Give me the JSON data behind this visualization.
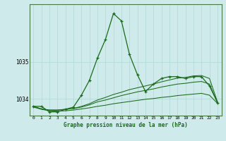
{
  "title": "Graphe pression niveau de la mer (hPa)",
  "background_color": "#ceeaea",
  "line_color_main": "#1a6b1a",
  "grid_color": "#b0d8d8",
  "xlim": [
    -0.5,
    23.5
  ],
  "ylim": [
    1033.55,
    1036.55
  ],
  "yticks": [
    1034,
    1035
  ],
  "xticks": [
    0,
    1,
    2,
    3,
    4,
    5,
    6,
    7,
    8,
    9,
    10,
    11,
    12,
    13,
    14,
    15,
    16,
    17,
    18,
    19,
    20,
    21,
    22,
    23
  ],
  "series_main": [
    1033.8,
    1033.8,
    1033.65,
    1033.65,
    1033.72,
    1033.78,
    1034.1,
    1034.5,
    1035.1,
    1035.6,
    1036.3,
    1036.1,
    1035.2,
    1034.65,
    1034.2,
    1034.4,
    1034.55,
    1034.6,
    1034.6,
    1034.55,
    1034.6,
    1034.6,
    1034.35,
    1033.9
  ],
  "series_smooth1": [
    1033.78,
    1033.72,
    1033.68,
    1033.67,
    1033.68,
    1033.7,
    1033.73,
    1033.76,
    1033.8,
    1033.83,
    1033.87,
    1033.9,
    1033.93,
    1033.96,
    1033.99,
    1034.01,
    1034.04,
    1034.06,
    1034.09,
    1034.11,
    1034.13,
    1034.15,
    1034.1,
    1033.88
  ],
  "series_smooth2": [
    1033.8,
    1033.73,
    1033.7,
    1033.7,
    1033.72,
    1033.74,
    1033.78,
    1033.84,
    1033.92,
    1033.97,
    1034.03,
    1034.09,
    1034.14,
    1034.19,
    1034.23,
    1034.27,
    1034.32,
    1034.36,
    1034.4,
    1034.42,
    1034.45,
    1034.47,
    1034.4,
    1033.9
  ],
  "series_smooth3": [
    1033.8,
    1033.73,
    1033.7,
    1033.7,
    1033.72,
    1033.74,
    1033.8,
    1033.87,
    1033.97,
    1034.04,
    1034.12,
    1034.18,
    1034.25,
    1034.3,
    1034.35,
    1034.4,
    1034.46,
    1034.51,
    1034.56,
    1034.58,
    1034.62,
    1034.63,
    1034.55,
    1033.92
  ]
}
